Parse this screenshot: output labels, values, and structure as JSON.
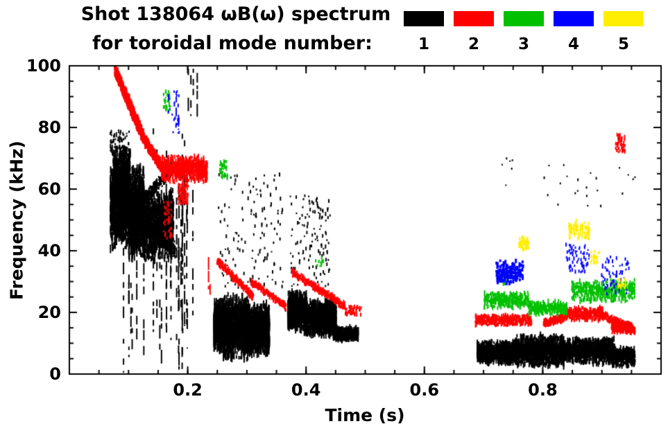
{
  "figure": {
    "title_line1": "Shot 138064 ωB(ω) spectrum",
    "title_line2": "for toroidal mode number:"
  },
  "chart_data": {
    "type": "scatter",
    "title": "Shot 138064 ωB(ω) spectrum for toroidal mode number: 1-5",
    "xlabel": "Time (s)",
    "ylabel": "Frequency (kHz)",
    "xlim": [
      0,
      1.0
    ],
    "ylim": [
      0,
      100
    ],
    "x_ticks": [
      0.2,
      0.4,
      0.6,
      0.8
    ],
    "x_minor_step": 0.05,
    "y_ticks": [
      0,
      20,
      40,
      60,
      80,
      100
    ],
    "y_minor_step": 5,
    "grid": false,
    "legend_position": "top-right",
    "series": [
      {
        "name": "1",
        "color": "#000000",
        "clusters": [
          {
            "shape": "blob",
            "t": [
              0.068,
              0.125
            ],
            "f": [
              40,
              68
            ],
            "n": 1300
          },
          {
            "shape": "blob",
            "t": [
              0.1,
              0.175
            ],
            "f": [
              36,
              60
            ],
            "n": 1300
          },
          {
            "shape": "blob",
            "t": [
              0.073,
              0.102
            ],
            "f": [
              54,
              75
            ],
            "n": 500
          },
          {
            "shape": "chirp",
            "from": [
              0.068,
              60
            ],
            "to": [
              0.178,
              40
            ],
            "spread": 3,
            "n": 500
          },
          {
            "shape": "chirp",
            "from": [
              0.075,
              46
            ],
            "to": [
              0.17,
              66
            ],
            "spread": 2.5,
            "n": 450
          },
          {
            "shape": "specks",
            "t": [
              0.068,
              0.1
            ],
            "f": [
              70,
              79
            ],
            "n": 80
          },
          {
            "shape": "streaks",
            "t": [
              0.088,
              0.215
            ],
            "f": [
              0,
              80
            ],
            "count": 26
          },
          {
            "shape": "streaks",
            "t": [
              0.196,
              0.215
            ],
            "f": [
              82,
              100
            ],
            "count": 4
          },
          {
            "shape": "blob",
            "t": [
              0.243,
              0.262
            ],
            "f": [
              7,
              24
            ],
            "n": 600
          },
          {
            "shape": "blob",
            "t": [
              0.258,
              0.302
            ],
            "f": [
              4,
              26
            ],
            "n": 1000
          },
          {
            "shape": "blob",
            "t": [
              0.298,
              0.337
            ],
            "f": [
              6,
              23
            ],
            "n": 800
          },
          {
            "shape": "specks",
            "t": [
              0.25,
              0.36
            ],
            "f": [
              28,
              65
            ],
            "n": 130
          },
          {
            "shape": "blob",
            "t": [
              0.368,
              0.4
            ],
            "f": [
              14,
              27
            ],
            "n": 700
          },
          {
            "shape": "blob",
            "t": [
              0.395,
              0.45
            ],
            "f": [
              12,
              24
            ],
            "n": 900
          },
          {
            "shape": "blob",
            "t": [
              0.445,
              0.487
            ],
            "f": [
              11,
              15
            ],
            "n": 380
          },
          {
            "shape": "specks",
            "t": [
              0.372,
              0.44
            ],
            "f": [
              28,
              58
            ],
            "n": 120
          },
          {
            "shape": "blob",
            "t": [
              0.688,
              0.76
            ],
            "f": [
              3,
              11
            ],
            "n": 900,
            "s": [
              3,
              9
            ]
          },
          {
            "shape": "blob",
            "t": [
              0.755,
              0.835
            ],
            "f": [
              2,
              13
            ],
            "n": 1100,
            "s": [
              3,
              10
            ]
          },
          {
            "shape": "blob",
            "t": [
              0.83,
              0.92
            ],
            "f": [
              3,
              12
            ],
            "n": 1000,
            "s": [
              3,
              10
            ]
          },
          {
            "shape": "blob",
            "t": [
              0.915,
              0.955
            ],
            "f": [
              2,
              9
            ],
            "n": 350,
            "s": [
              3,
              8
            ]
          },
          {
            "shape": "specks",
            "t": [
              0.72,
              0.955
            ],
            "f": [
              52,
              70
            ],
            "n": 28,
            "s": [
              2,
              4
            ]
          }
        ]
      },
      {
        "name": "2",
        "color": "#ff0000",
        "clusters": [
          {
            "shape": "chirp",
            "from": [
              0.075,
              99
            ],
            "to": [
              0.125,
              76
            ],
            "spread": 2.5,
            "n": 700,
            "w": 3,
            "s": [
              3,
              7
            ]
          },
          {
            "shape": "chirp",
            "from": [
              0.125,
              76
            ],
            "to": [
              0.158,
              66
            ],
            "spread": 2,
            "n": 380,
            "w": 3,
            "s": [
              3,
              7
            ]
          },
          {
            "shape": "blob",
            "t": [
              0.155,
              0.232
            ],
            "f": [
              62,
              71
            ],
            "n": 700,
            "s": [
              3,
              8
            ]
          },
          {
            "shape": "specks",
            "t": [
              0.183,
              0.2
            ],
            "f": [
              55,
              62
            ],
            "n": 90
          },
          {
            "shape": "specks",
            "t": [
              0.158,
              0.172
            ],
            "f": [
              44,
              56
            ],
            "n": 45
          },
          {
            "shape": "streaks",
            "t": [
              0.232,
              0.24
            ],
            "f": [
              24,
              38
            ],
            "count": 2
          },
          {
            "shape": "chirp",
            "from": [
              0.248,
              37
            ],
            "to": [
              0.31,
              25
            ],
            "spread": 1.5,
            "n": 260,
            "s": [
              3,
              6
            ]
          },
          {
            "shape": "chirp",
            "from": [
              0.305,
              30
            ],
            "to": [
              0.365,
              22
            ],
            "spread": 1.3,
            "n": 220,
            "s": [
              3,
              6
            ]
          },
          {
            "shape": "chirp",
            "from": [
              0.375,
              33
            ],
            "to": [
              0.465,
              22
            ],
            "spread": 1.4,
            "n": 300,
            "s": [
              3,
              6
            ]
          },
          {
            "shape": "specks",
            "t": [
              0.465,
              0.492
            ],
            "f": [
              19,
              22
            ],
            "n": 60
          },
          {
            "shape": "blob",
            "t": [
              0.685,
              0.78
            ],
            "f": [
              15.5,
              19.5
            ],
            "n": 430,
            "s": [
              3,
              6
            ]
          },
          {
            "shape": "chirp",
            "from": [
              0.8,
              16.5
            ],
            "to": [
              0.838,
              18.5
            ],
            "spread": 1.4,
            "n": 180,
            "s": [
              3,
              6
            ]
          },
          {
            "shape": "blob",
            "t": [
              0.835,
              0.9
            ],
            "f": [
              17,
              22
            ],
            "n": 380,
            "s": [
              3,
              6
            ]
          },
          {
            "shape": "chirp",
            "from": [
              0.9,
              19
            ],
            "to": [
              0.955,
              14.5
            ],
            "spread": 1.5,
            "n": 250,
            "s": [
              3,
              6
            ]
          },
          {
            "shape": "blob",
            "t": [
              0.915,
              0.95
            ],
            "f": [
              13,
              17
            ],
            "n": 200,
            "s": [
              3,
              6
            ]
          },
          {
            "shape": "specks",
            "t": [
              0.922,
              0.938
            ],
            "f": [
              72,
              78
            ],
            "n": 60
          }
        ]
      },
      {
        "name": "3",
        "color": "#00c000",
        "clusters": [
          {
            "shape": "specks",
            "t": [
              0.158,
              0.17
            ],
            "f": [
              85,
              92
            ],
            "n": 30
          },
          {
            "shape": "specks",
            "t": [
              0.253,
              0.266
            ],
            "f": [
              63,
              69
            ],
            "n": 40
          },
          {
            "shape": "specks",
            "t": [
              0.415,
              0.428
            ],
            "f": [
              35,
              38
            ],
            "n": 15
          },
          {
            "shape": "blob",
            "t": [
              0.7,
              0.775
            ],
            "f": [
              21,
              27
            ],
            "n": 300,
            "s": [
              3,
              7
            ]
          },
          {
            "shape": "specks",
            "t": [
              0.728,
              0.742
            ],
            "f": [
              29,
              32
            ],
            "n": 20
          },
          {
            "shape": "blob",
            "t": [
              0.775,
              0.84
            ],
            "f": [
              19,
              24
            ],
            "n": 280,
            "s": [
              3,
              7
            ]
          },
          {
            "shape": "blob",
            "t": [
              0.848,
              0.955
            ],
            "f": [
              23,
              31
            ],
            "n": 420,
            "s": [
              3,
              7
            ]
          }
        ]
      },
      {
        "name": "4",
        "color": "#0000ff",
        "clusters": [
          {
            "shape": "streaks",
            "t": [
              0.166,
              0.186
            ],
            "f": [
              77,
              92
            ],
            "count": 3
          },
          {
            "shape": "specks",
            "t": [
              0.166,
              0.186
            ],
            "f": [
              77,
              92
            ],
            "n": 25
          },
          {
            "shape": "blob",
            "t": [
              0.72,
              0.765
            ],
            "f": [
              29,
              37
            ],
            "n": 150,
            "w": 3,
            "s": [
              3,
              7
            ]
          },
          {
            "shape": "specks",
            "t": [
              0.838,
              0.878
            ],
            "f": [
              33,
              42
            ],
            "n": 65
          },
          {
            "shape": "specks",
            "t": [
              0.898,
              0.945
            ],
            "f": [
              26,
              38
            ],
            "n": 65
          }
        ]
      },
      {
        "name": "5",
        "color": "#ffee00",
        "clusters": [
          {
            "shape": "blob",
            "t": [
              0.758,
              0.776
            ],
            "f": [
              40,
              45
            ],
            "n": 55,
            "s": [
              3,
              6
            ]
          },
          {
            "shape": "blob",
            "t": [
              0.843,
              0.878
            ],
            "f": [
              43,
              50
            ],
            "n": 95,
            "s": [
              3,
              6
            ]
          },
          {
            "shape": "specks",
            "t": [
              0.878,
              0.896
            ],
            "f": [
              36,
              40
            ],
            "n": 25
          },
          {
            "shape": "specks",
            "t": [
              0.925,
              0.94
            ],
            "f": [
              28,
              31
            ],
            "n": 20
          }
        ]
      }
    ]
  }
}
